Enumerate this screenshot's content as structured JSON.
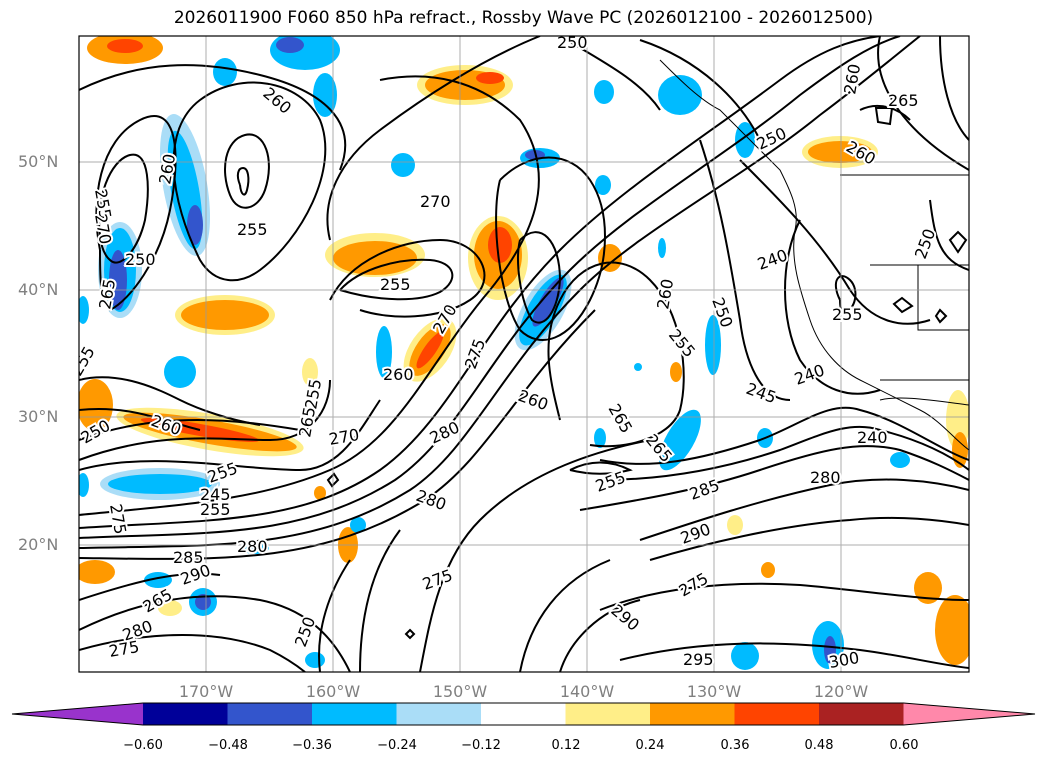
{
  "title": "2026011900 F060 850 hPa refract., Rossby Wave PC (2026012100 - 2026012500)",
  "latitude_labels": [
    "50°N",
    "40°N",
    "30°N",
    "20°N"
  ],
  "longitude_labels": [
    "170°W",
    "160°W",
    "150°W",
    "140°W",
    "130°W",
    "120°W"
  ],
  "colorbar": {
    "ticks": [
      "−0.60",
      "−0.48",
      "−0.36",
      "−0.24",
      "−0.12",
      "0.12",
      "0.24",
      "0.36",
      "0.48",
      "0.60"
    ],
    "colors": [
      "#9933cc",
      "#000099",
      "#3355cc",
      "#00bbff",
      "#aaddf7",
      "#ffffff",
      "#ffee88",
      "#ff9900",
      "#ff4400",
      "#aa2222",
      "#ff88aa"
    ]
  },
  "contour_labels": [
    "250",
    "260",
    "265",
    "255",
    "270",
    "250",
    "260",
    "250",
    "260",
    "255",
    "260",
    "240",
    "250",
    "255",
    "265",
    "270",
    "255",
    "270",
    "250",
    "260",
    "255",
    "260",
    "250",
    "255",
    "275",
    "255",
    "260",
    "240",
    "245",
    "280",
    "280",
    "245",
    "255",
    "265",
    "265",
    "270",
    "280",
    "260",
    "265",
    "275",
    "255",
    "240",
    "255",
    "285",
    "290",
    "285",
    "280",
    "280",
    "275",
    "275",
    "275",
    "290",
    "290",
    "295",
    "300",
    "265",
    "250"
  ]
}
